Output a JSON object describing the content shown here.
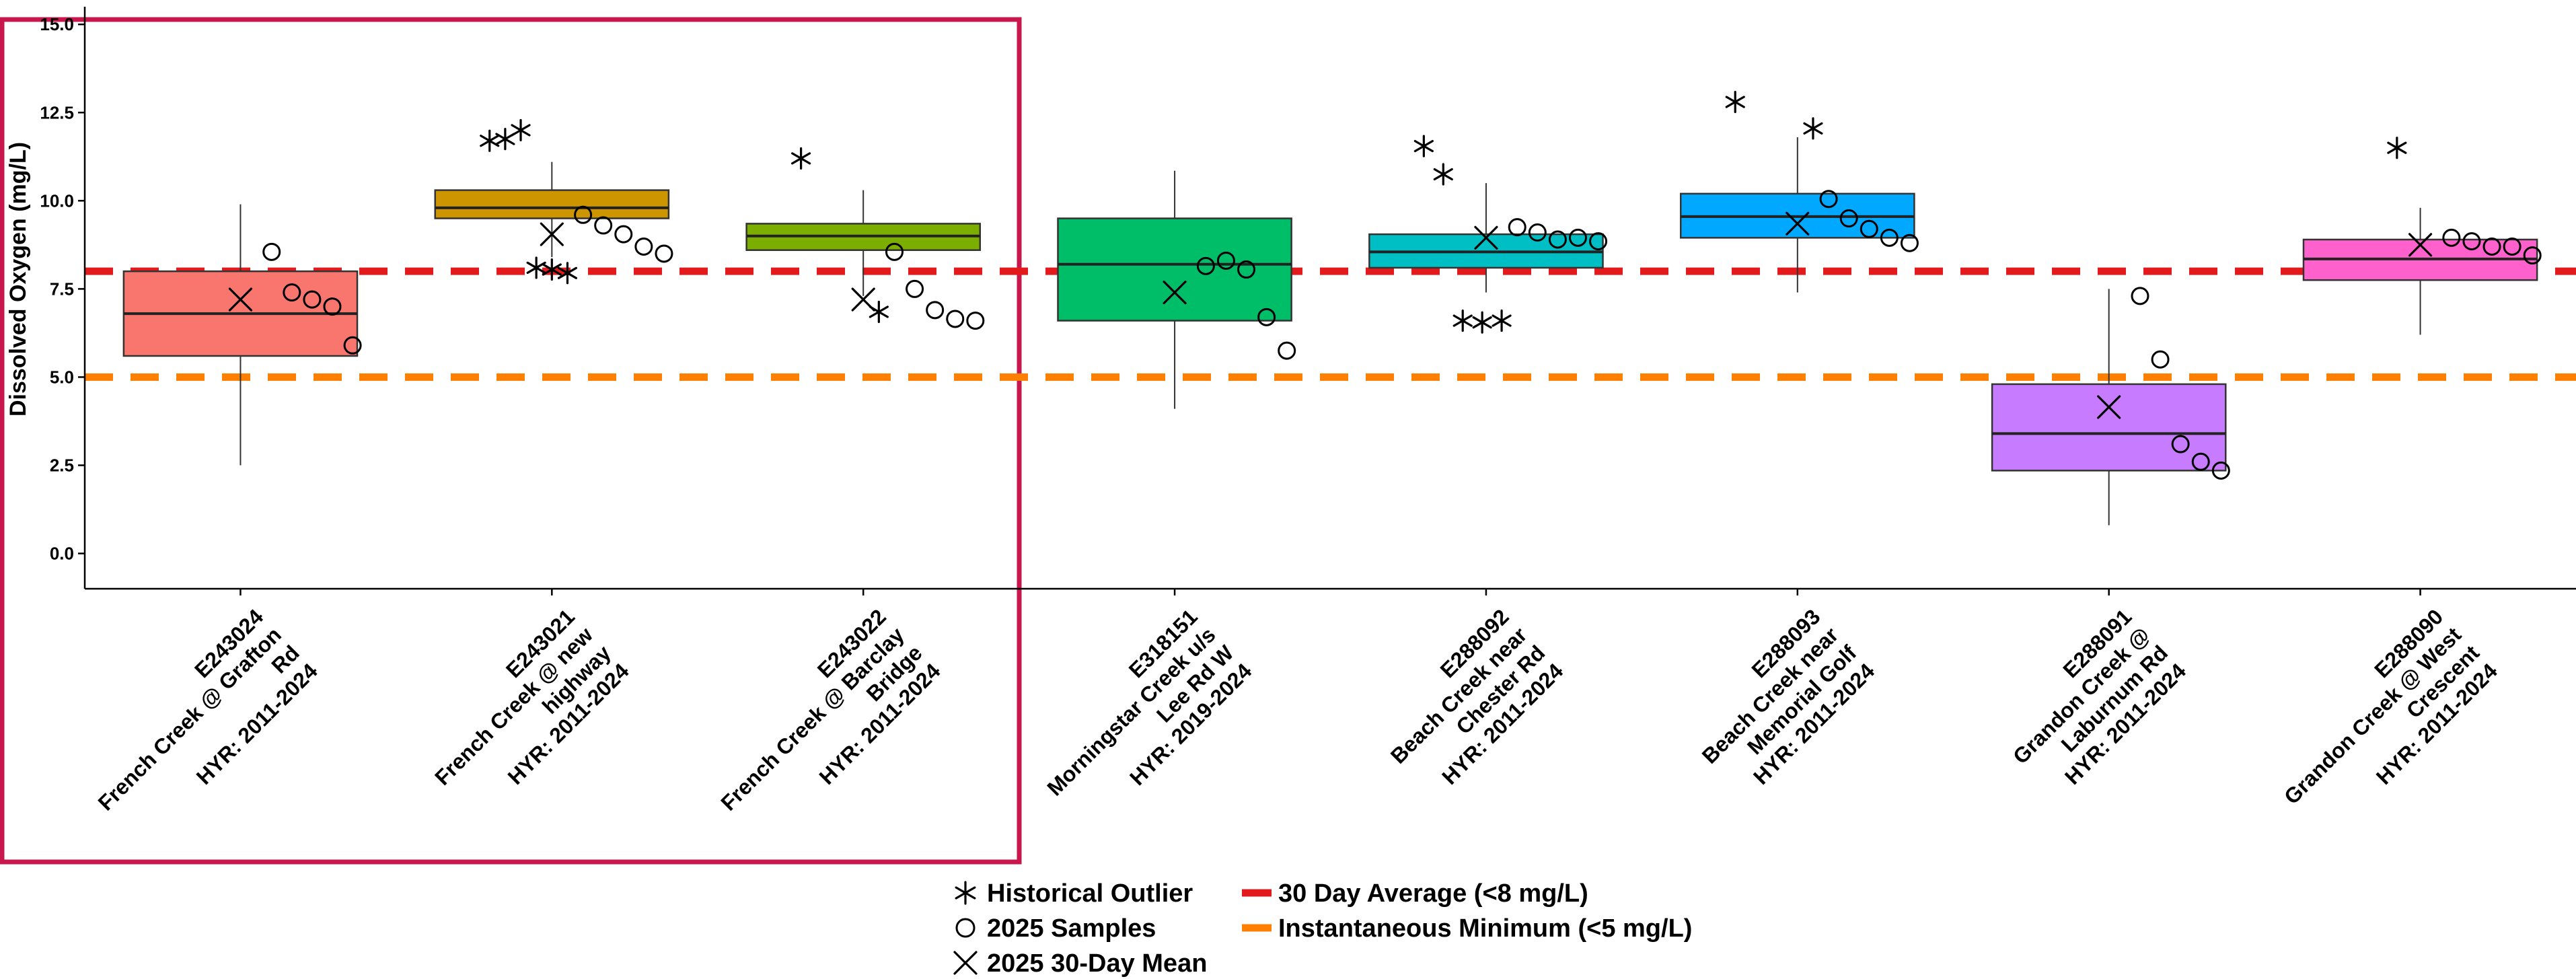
{
  "chart_data": {
    "type": "box",
    "ylabel": "Dissolved Oxygen (mg/L)",
    "xlabel": "",
    "title": "",
    "ylim": [
      -1.0,
      15.5
    ],
    "yticks": [
      0.0,
      2.5,
      5.0,
      7.5,
      10.0,
      12.5,
      15.0
    ],
    "ytick_labels": [
      "0.0",
      "2.5",
      "5.0",
      "7.5",
      "10.0",
      "12.5",
      "15.0"
    ],
    "grid": false,
    "legend_position": "bottom",
    "reference_lines": [
      {
        "name": "30 Day Average (<8 mg/L)",
        "value": 8.0,
        "color": "#e31a1c",
        "style": "dashed"
      },
      {
        "name": "Instantaneous Minimum (<5 mg/L)",
        "value": 5.0,
        "color": "#ff7f00",
        "style": "dashed"
      }
    ],
    "legend": [
      {
        "symbol": "asterisk",
        "label": "Historical Outlier"
      },
      {
        "symbol": "circle",
        "label": "2025 Samples"
      },
      {
        "symbol": "cross",
        "label": "2025 30-Day Mean"
      },
      {
        "symbol": "red-dash",
        "label": "30 Day Average (<8 mg/L)"
      },
      {
        "symbol": "orange-dash",
        "label": "Instantaneous Minimum (<5 mg/L)"
      }
    ],
    "highlight": {
      "groups": [
        0,
        1,
        2
      ],
      "color": "#c8174d"
    },
    "groups": [
      {
        "label_lines": [
          "E243024",
          "French Creek @ Grafton",
          "Rd",
          "HYR: 2011-2024"
        ],
        "color": "#f8766d",
        "box": {
          "whisker_low": 2.5,
          "q1": 5.6,
          "median": 6.8,
          "q3": 8.0,
          "whisker_high": 9.9
        },
        "mean_30day": 7.2,
        "samples": [
          8.55,
          7.4,
          7.2,
          7.0,
          5.9
        ],
        "outliers": []
      },
      {
        "label_lines": [
          "E243021",
          "French Creek @ new",
          "highway",
          "HYR: 2011-2024"
        ],
        "color": "#cd9600",
        "box": {
          "whisker_low": 8.4,
          "q1": 9.5,
          "median": 9.8,
          "q3": 10.3,
          "whisker_high": 11.1
        },
        "mean_30day": 9.05,
        "samples": [
          9.6,
          9.3,
          9.05,
          8.7,
          8.5
        ],
        "outliers": [
          11.7,
          11.75,
          12.0,
          8.1,
          8.05,
          7.95
        ]
      },
      {
        "label_lines": [
          "E243022",
          "French Creek @ Barclay",
          "Bridge",
          "HYR: 2011-2024"
        ],
        "color": "#7cae00",
        "box": {
          "whisker_low": 7.3,
          "q1": 8.6,
          "median": 9.0,
          "q3": 9.35,
          "whisker_high": 10.3
        },
        "mean_30day": 7.2,
        "samples": [
          8.55,
          7.5,
          6.9,
          6.65,
          6.6
        ],
        "outliers": [
          11.2,
          6.85
        ]
      },
      {
        "label_lines": [
          "E318151",
          "Morningstar Creek u/s",
          "Lee Rd W",
          "HYR: 2019-2024"
        ],
        "color": "#00be67",
        "box": {
          "whisker_low": 4.1,
          "q1": 6.6,
          "median": 8.2,
          "q3": 9.5,
          "whisker_high": 10.85
        },
        "mean_30day": 7.4,
        "samples": [
          8.15,
          8.3,
          8.05,
          6.7,
          5.75
        ],
        "outliers": []
      },
      {
        "label_lines": [
          "E288092",
          "Beach Creek near",
          "Chester Rd",
          "HYR: 2011-2024"
        ],
        "color": "#00bfc4",
        "box": {
          "whisker_low": 7.4,
          "q1": 8.1,
          "median": 8.55,
          "q3": 9.05,
          "whisker_high": 10.5
        },
        "mean_30day": 8.95,
        "samples": [
          9.25,
          9.1,
          8.9,
          8.95,
          8.85
        ],
        "outliers": [
          11.55,
          10.75,
          6.6,
          6.55,
          6.6
        ]
      },
      {
        "label_lines": [
          "E288093",
          "Beach Creek near",
          "Memorial Golf",
          "HYR: 2011-2024"
        ],
        "color": "#00a9ff",
        "box": {
          "whisker_low": 7.4,
          "q1": 8.95,
          "median": 9.55,
          "q3": 10.2,
          "whisker_high": 11.8
        },
        "mean_30day": 9.35,
        "samples": [
          10.05,
          9.5,
          9.2,
          8.95,
          8.8
        ],
        "outliers": [
          12.8,
          12.05
        ]
      },
      {
        "label_lines": [
          "E288091",
          "Grandon Creek @",
          "Laburnum Rd",
          "HYR: 2011-2024"
        ],
        "color": "#c77cff",
        "box": {
          "whisker_low": 0.8,
          "q1": 2.35,
          "median": 3.4,
          "q3": 4.8,
          "whisker_high": 7.5
        },
        "mean_30day": 4.15,
        "samples": [
          7.3,
          5.5,
          3.1,
          2.6,
          2.35
        ],
        "outliers": []
      },
      {
        "label_lines": [
          "E288090",
          "Grandon Creek @ West",
          "Crescent",
          "HYR: 2011-2024"
        ],
        "color": "#ff61cc",
        "box": {
          "whisker_low": 6.2,
          "q1": 7.75,
          "median": 8.35,
          "q3": 8.9,
          "whisker_high": 9.8
        },
        "mean_30day": 8.75,
        "samples": [
          8.95,
          8.85,
          8.7,
          8.7,
          8.45
        ],
        "outliers": [
          11.5
        ]
      }
    ]
  }
}
